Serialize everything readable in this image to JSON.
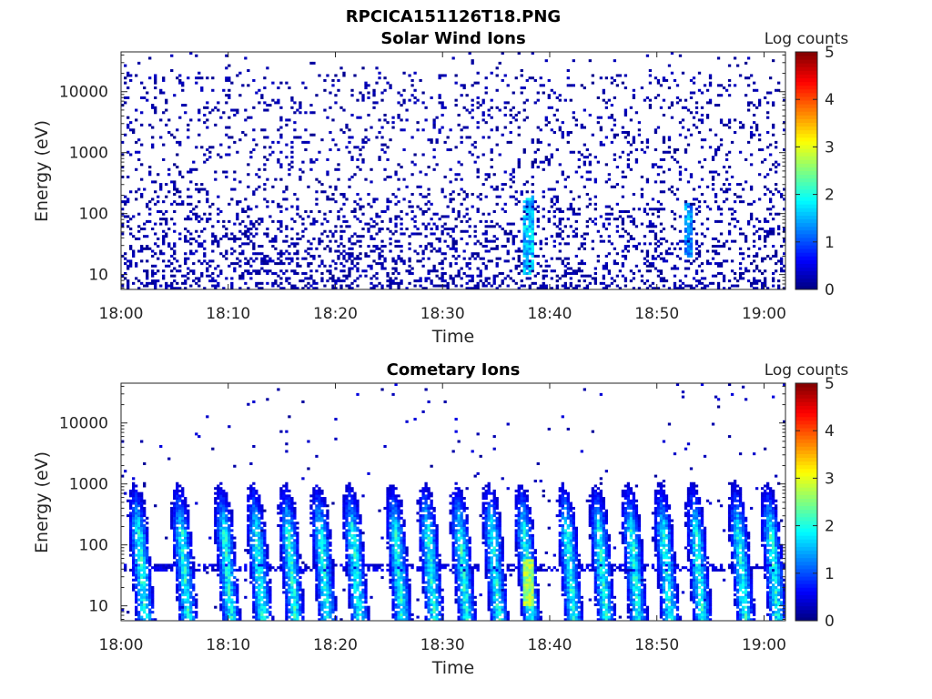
{
  "figure_title": "RPCICA151126T18.PNG",
  "chart_data": [
    {
      "type": "heatmap",
      "title": "Solar Wind Ions",
      "xlabel": "Time",
      "ylabel": "Energy (eV)",
      "x_ticks": [
        "18:00",
        "18:10",
        "18:20",
        "18:30",
        "18:40",
        "18:50",
        "19:00"
      ],
      "xlim": [
        "18:00",
        "19:02"
      ],
      "y_scale": "log",
      "y_ticks": [
        "10",
        "100",
        "1000",
        "10000"
      ],
      "ylim": [
        5.7,
        45000
      ],
      "colorbar": {
        "label": "Log counts",
        "ticks": [
          "0",
          "1",
          "2",
          "3",
          "4",
          "5"
        ],
        "range": [
          0,
          5
        ],
        "colormap": "jet"
      },
      "features": {
        "description_hint": "sparse low-count speckle across all energies, denser below ~300 eV; brief enhancements near 18:38 and 18:54",
        "peaks": [
          {
            "time": "18:38",
            "energy_low": 10,
            "energy_high": 200,
            "log_counts": 2.0
          },
          {
            "time": "18:53",
            "energy_low": 20,
            "energy_high": 150,
            "log_counts": 1.7
          }
        ]
      }
    },
    {
      "type": "heatmap",
      "title": "Cometary Ions",
      "xlabel": "Time",
      "ylabel": "Energy (eV)",
      "x_ticks": [
        "18:00",
        "18:10",
        "18:20",
        "18:30",
        "18:40",
        "18:50",
        "19:00"
      ],
      "xlim": [
        "18:00",
        "19:02"
      ],
      "y_scale": "log",
      "y_ticks": [
        "10",
        "100",
        "1000",
        "10000"
      ],
      "ylim": [
        5.7,
        45000
      ],
      "colorbar": {
        "label": "Log counts",
        "ticks": [
          "0",
          "1",
          "2",
          "3",
          "4",
          "5"
        ],
        "range": [
          0,
          5
        ],
        "colormap": "jet"
      },
      "features": {
        "description_hint": "quasi-periodic bursts about every 3.3 minutes, each spanning ~8 eV to ~1000 eV with peak log counts ~2-3 at low energies",
        "burst_times": [
          "18:02",
          "18:06",
          "18:10",
          "18:13",
          "18:16",
          "18:19",
          "18:22",
          "18:26",
          "18:29",
          "18:32",
          "18:35",
          "18:38",
          "18:42",
          "18:45",
          "18:48",
          "18:51",
          "18:54",
          "18:58",
          "19:01"
        ],
        "peak_burst": {
          "time": "18:38",
          "energy_low": 10,
          "energy_high": 60,
          "log_counts": 3.0
        }
      }
    }
  ]
}
